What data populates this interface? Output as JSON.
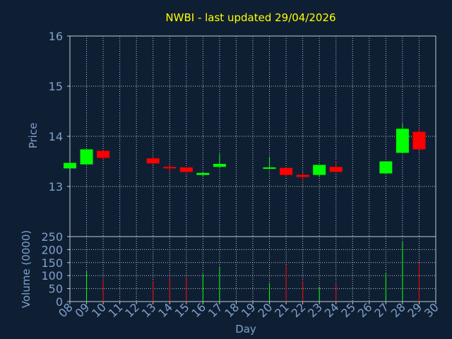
{
  "chart_data": {
    "type": "candlestick",
    "title": "NWBI - last updated 29/04/2026",
    "xlabel": "Day",
    "price_ylabel": "Price",
    "volume_ylabel": "Volume (0000)",
    "x_ticks": [
      "08",
      "09",
      "10",
      "11",
      "12",
      "13",
      "14",
      "15",
      "16",
      "17",
      "18",
      "19",
      "20",
      "21",
      "22",
      "23",
      "24",
      "25",
      "26",
      "27",
      "28",
      "29",
      "30"
    ],
    "price_ylim": [
      12.0,
      16.0
    ],
    "price_ticks": [
      "13",
      "14",
      "15",
      "16"
    ],
    "volume_ylim": [
      0,
      250
    ],
    "volume_ticks": [
      "0",
      "50",
      "100",
      "150",
      "200",
      "250"
    ],
    "grid": true,
    "colors": {
      "background": "#0f1f33",
      "title": "#ffff00",
      "axis_text": "#7fa0cc",
      "axis_line": "#c0c8d8",
      "up": "#00ff00",
      "down": "#ff0000"
    },
    "candles": [
      {
        "day": "08",
        "open": 13.36,
        "high": 13.47,
        "low": 13.36,
        "close": 13.47,
        "volume": 0
      },
      {
        "day": "09",
        "open": 13.44,
        "high": 13.74,
        "low": 13.44,
        "close": 13.74,
        "volume": 118
      },
      {
        "day": "10",
        "open": 13.71,
        "high": 13.71,
        "low": 13.52,
        "close": 13.57,
        "volume": 88
      },
      {
        "day": "13",
        "open": 13.56,
        "high": 13.56,
        "low": 13.43,
        "close": 13.46,
        "volume": 80
      },
      {
        "day": "14",
        "open": 13.39,
        "high": 13.46,
        "low": 13.27,
        "close": 13.37,
        "volume": 97
      },
      {
        "day": "15",
        "open": 13.38,
        "high": 13.38,
        "low": 13.28,
        "close": 13.29,
        "volume": 98
      },
      {
        "day": "16",
        "open": 13.23,
        "high": 13.28,
        "low": 13.2,
        "close": 13.27,
        "volume": 105
      },
      {
        "day": "17",
        "open": 13.39,
        "high": 13.65,
        "low": 13.39,
        "close": 13.45,
        "volume": 132
      },
      {
        "day": "20",
        "open": 13.37,
        "high": 13.58,
        "low": 13.37,
        "close": 13.38,
        "volume": 72
      },
      {
        "day": "21",
        "open": 13.37,
        "high": 13.37,
        "low": 13.2,
        "close": 13.23,
        "volume": 140
      },
      {
        "day": "22",
        "open": 13.23,
        "high": 13.28,
        "low": 13.1,
        "close": 13.19,
        "volume": 80
      },
      {
        "day": "23",
        "open": 13.23,
        "high": 13.43,
        "low": 13.19,
        "close": 13.43,
        "volume": 57
      },
      {
        "day": "24",
        "open": 13.39,
        "high": 13.5,
        "low": 13.28,
        "close": 13.29,
        "volume": 69
      },
      {
        "day": "27",
        "open": 13.26,
        "high": 13.5,
        "low": 13.26,
        "close": 13.5,
        "volume": 108
      },
      {
        "day": "28",
        "open": 13.67,
        "high": 14.25,
        "low": 13.67,
        "close": 14.15,
        "volume": 230
      },
      {
        "day": "29",
        "open": 14.09,
        "high": 14.18,
        "low": 13.72,
        "close": 13.74,
        "volume": 150
      }
    ]
  }
}
